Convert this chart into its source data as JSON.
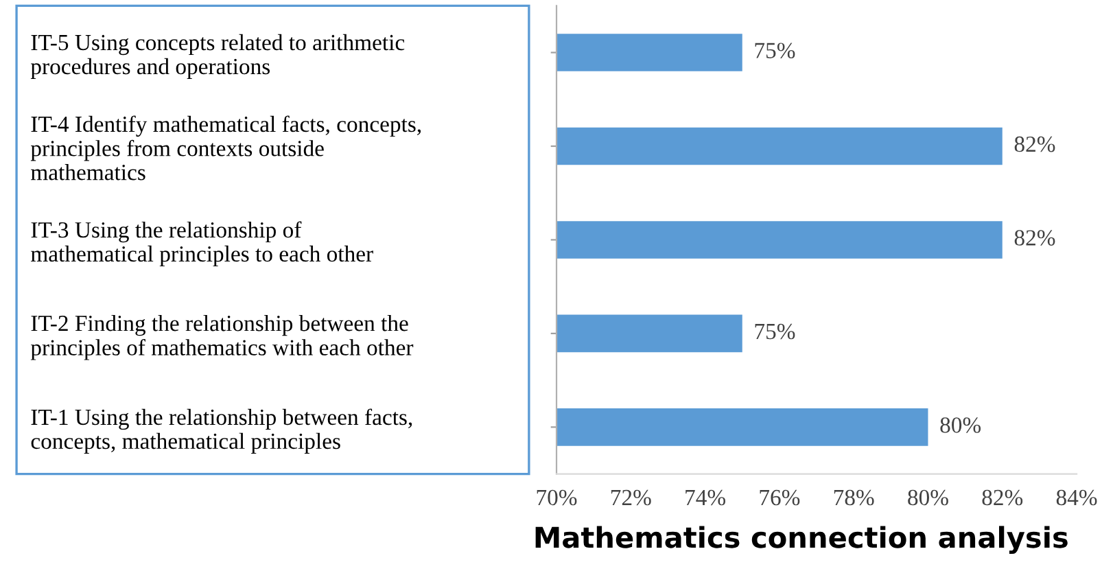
{
  "chart_data": {
    "type": "bar",
    "orientation": "horizontal",
    "title": "Mathematics connection analysis",
    "categories": [
      "IT-5 Using concepts related to arithmetic\nprocedures and operations",
      "IT-4 Identify mathematical facts, concepts,\nprinciples from contexts outside\nmathematics",
      "IT-3 Using the relationship of\nmathematical principles to each other",
      "IT-2 Finding the relationship between the\nprinciples of mathematics with each other",
      "IT-1 Using the relationship between facts,\nconcepts, mathematical principles"
    ],
    "values": [
      75,
      82,
      82,
      75,
      80
    ],
    "value_labels": [
      "75%",
      "82%",
      "82%",
      "75%",
      "80%"
    ],
    "color": "#5b9bd5",
    "xlim": [
      70,
      84
    ],
    "xticks": [
      {
        "value": 70,
        "label": "70%"
      },
      {
        "value": 72,
        "label": "72%"
      },
      {
        "value": 74,
        "label": "74%"
      },
      {
        "value": 76,
        "label": "76%"
      },
      {
        "value": 78,
        "label": "78%"
      },
      {
        "value": 80,
        "label": "80%"
      },
      {
        "value": 82,
        "label": "82%"
      },
      {
        "value": 84,
        "label": "84%"
      }
    ],
    "grid": false,
    "legend": false
  }
}
